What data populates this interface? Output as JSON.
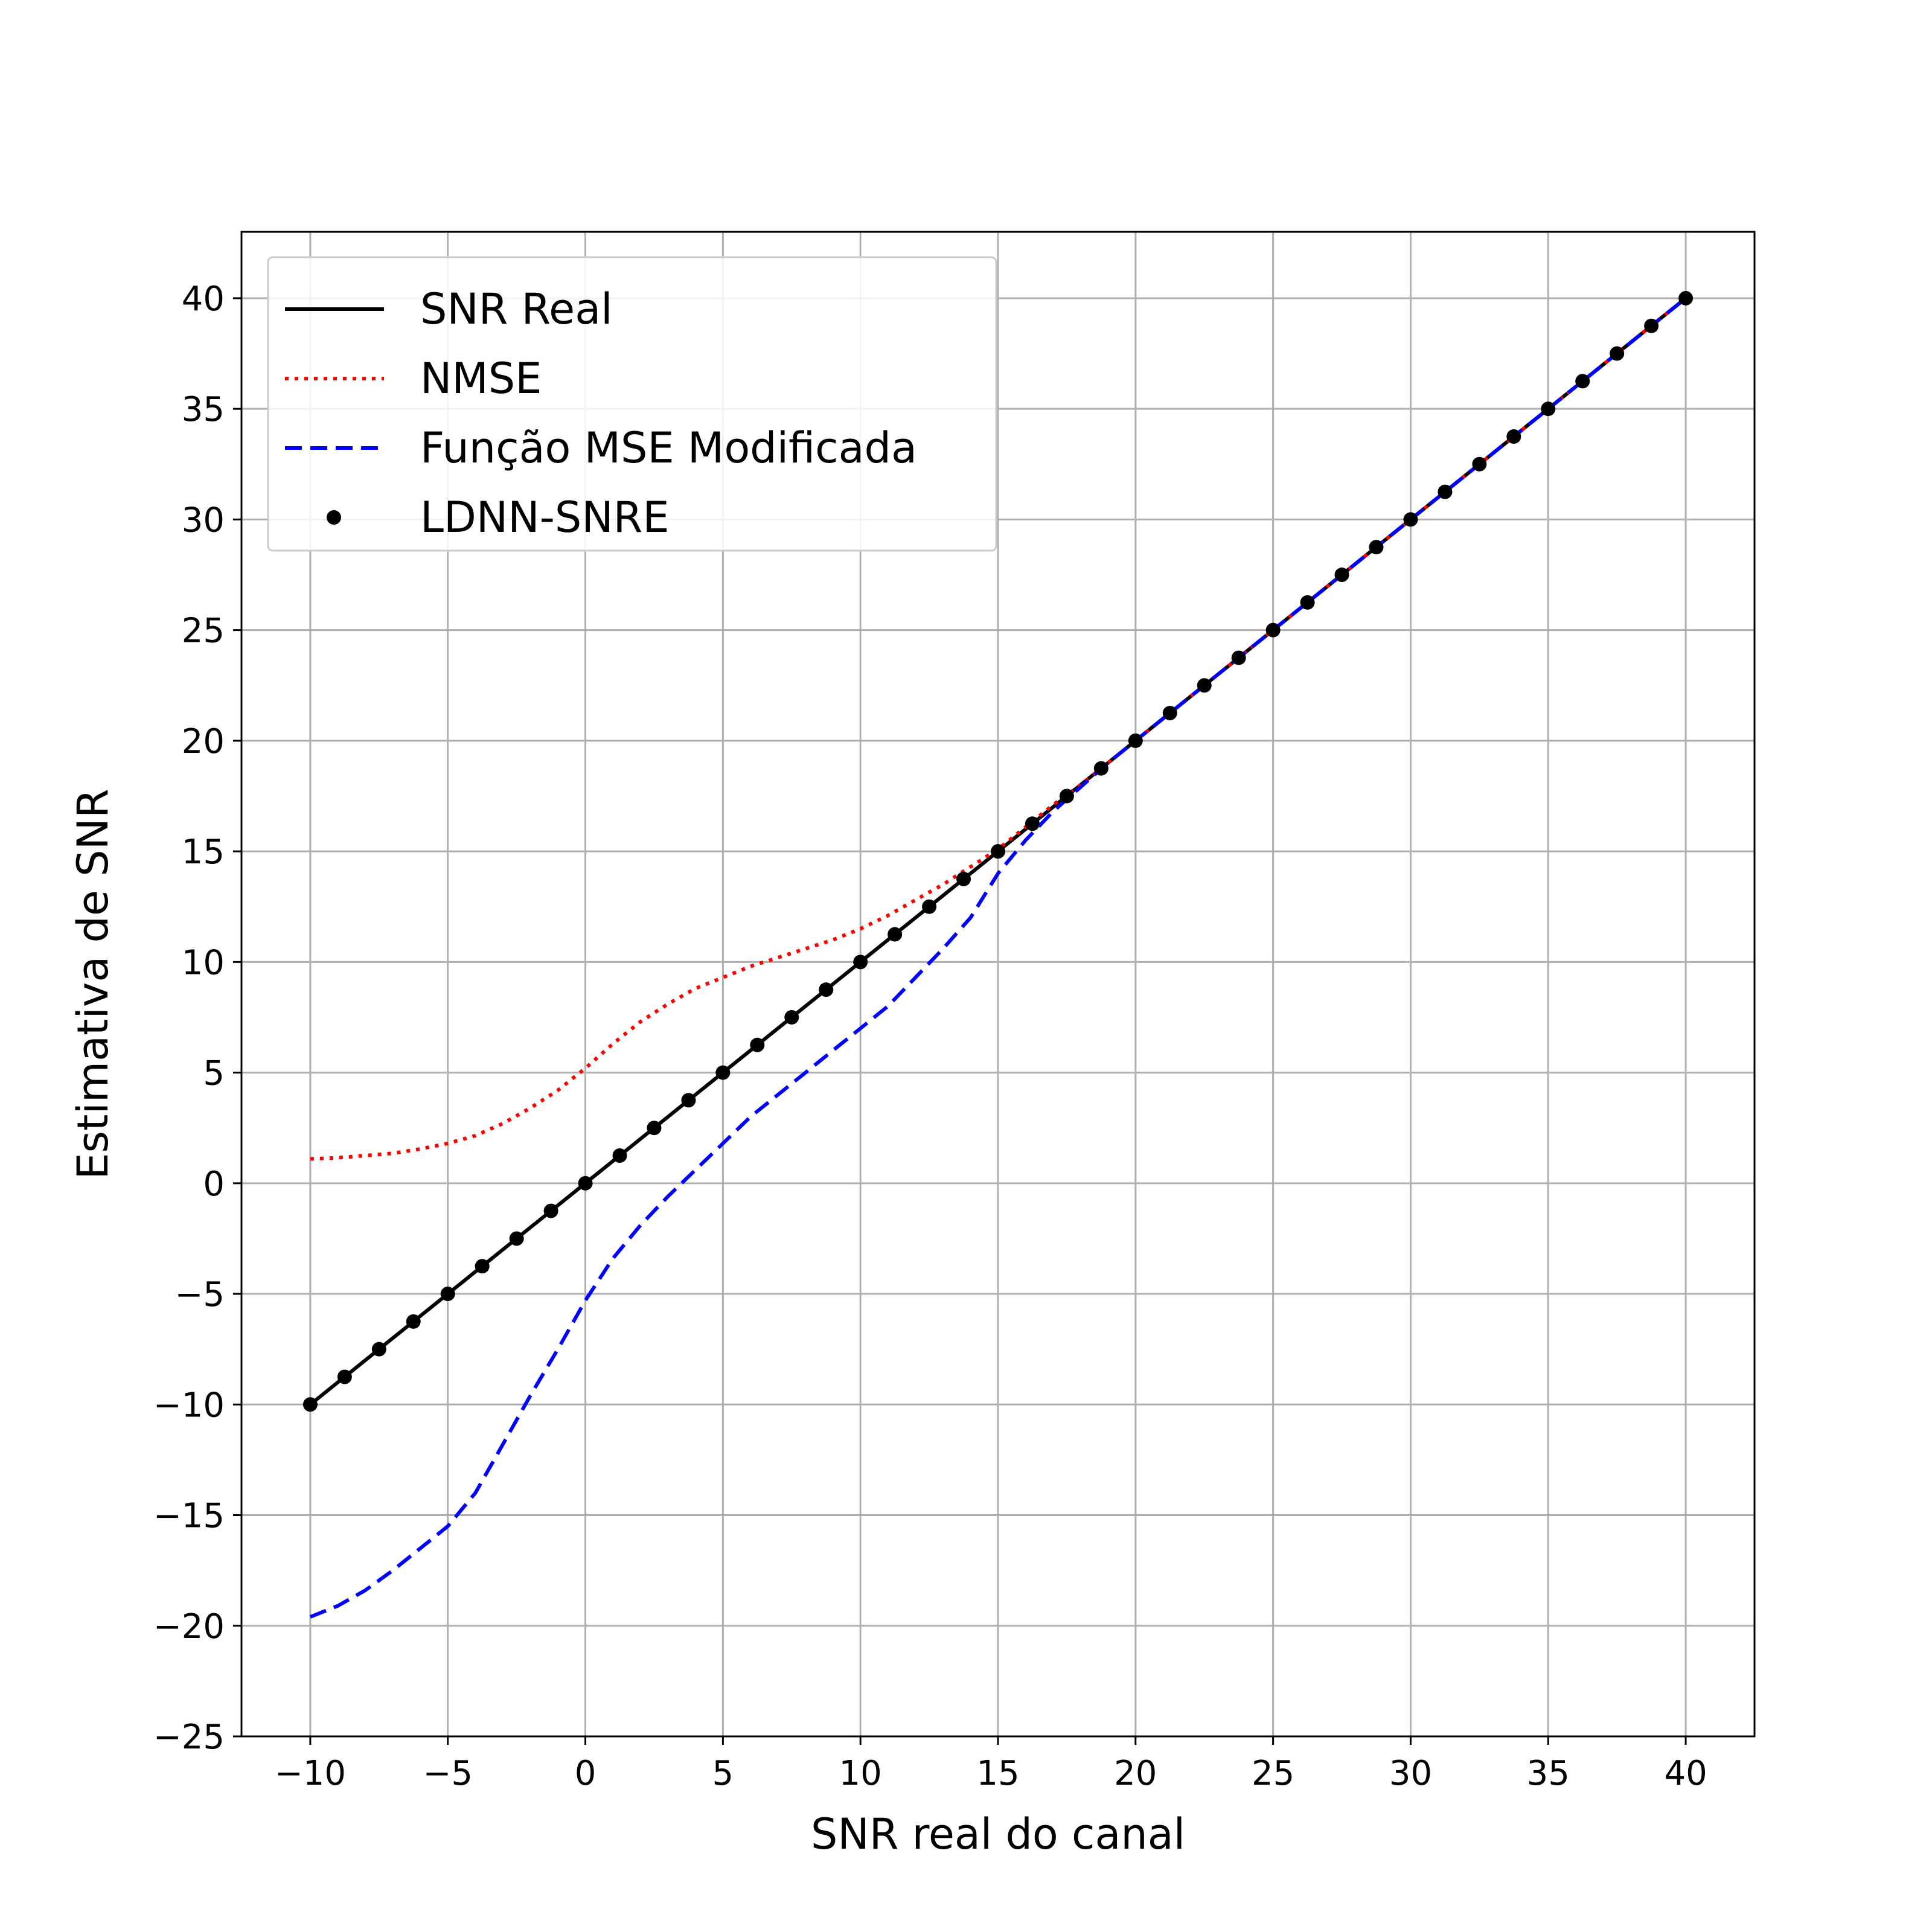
{
  "chart_data": {
    "type": "line",
    "xlabel": "SNR real do canal",
    "ylabel": "Estimativa de SNR",
    "xlim": [
      -12.5,
      42.5
    ],
    "ylim": [
      -25,
      43
    ],
    "xticks": [
      -10,
      -5,
      0,
      5,
      10,
      15,
      20,
      25,
      30,
      35,
      40
    ],
    "xtick_labels": [
      "−10",
      "−5",
      "0",
      "5",
      "10",
      "15",
      "20",
      "25",
      "30",
      "35",
      "40"
    ],
    "yticks": [
      -25,
      -20,
      -15,
      -10,
      -5,
      0,
      5,
      10,
      15,
      20,
      25,
      30,
      35,
      40
    ],
    "ytick_labels": [
      "−25",
      "−20",
      "−15",
      "−10",
      "−5",
      "0",
      "5",
      "10",
      "15",
      "20",
      "25",
      "30",
      "35",
      "40"
    ],
    "grid": true,
    "legend": {
      "position": "top-left"
    },
    "colors": {
      "snr_real": "#000000",
      "nmse": "#ff0000",
      "mse_mod": "#0000ff",
      "ldnn": "#000000",
      "grid": "#b0b0b0"
    },
    "series": [
      {
        "name": "SNR Real",
        "style": "solid",
        "x": [
          -10,
          40
        ],
        "y": [
          -10,
          40
        ]
      },
      {
        "name": "NMSE",
        "style": "dotted",
        "x": [
          -10,
          -9,
          -8,
          -7,
          -6,
          -5,
          -4,
          -3,
          -2,
          -1,
          0,
          1,
          2,
          3,
          4,
          5,
          6,
          7,
          8,
          9,
          10,
          11,
          12,
          13,
          14,
          15,
          16,
          17,
          18,
          19,
          20,
          25,
          30,
          35,
          40
        ],
        "y": [
          1.1,
          1.15,
          1.25,
          1.35,
          1.55,
          1.8,
          2.15,
          2.7,
          3.4,
          4.2,
          5.2,
          6.3,
          7.3,
          8.1,
          8.8,
          9.3,
          9.8,
          10.2,
          10.6,
          11.0,
          11.5,
          12.1,
          12.8,
          13.5,
          14.3,
          15.1,
          16.1,
          17.1,
          18.0,
          19.0,
          20.0,
          25.0,
          30.0,
          35.0,
          40.0
        ]
      },
      {
        "name": "Função MSE Modificada",
        "style": "dashed",
        "x": [
          -10,
          -9,
          -8,
          -7,
          -6,
          -5,
          -4,
          -3,
          -2,
          -1,
          0,
          1,
          2,
          3,
          4,
          5,
          6,
          7,
          8,
          9,
          10,
          11,
          12,
          13,
          14,
          15,
          16,
          17,
          18,
          19,
          20,
          25,
          30,
          35,
          40
        ],
        "y": [
          -19.6,
          -19.1,
          -18.4,
          -17.5,
          -16.5,
          -15.5,
          -14.0,
          -11.8,
          -9.6,
          -7.5,
          -5.3,
          -3.4,
          -1.9,
          -0.6,
          0.6,
          1.8,
          3.0,
          4.0,
          5.0,
          6.0,
          7.0,
          8.0,
          9.3,
          10.6,
          12.0,
          14.0,
          15.5,
          16.8,
          17.9,
          19.0,
          20.0,
          25.0,
          30.0,
          35.0,
          40.0
        ]
      },
      {
        "name": "LDNN-SNRE",
        "style": "markers",
        "x": [
          -10,
          -8.75,
          -7.5,
          -6.25,
          -5,
          -3.75,
          -2.5,
          -1.25,
          0,
          1.25,
          2.5,
          3.75,
          5,
          6.25,
          7.5,
          8.75,
          10,
          11.25,
          12.5,
          13.75,
          15,
          16.25,
          17.5,
          18.75,
          20,
          21.25,
          22.5,
          23.75,
          25,
          26.25,
          27.5,
          28.75,
          30,
          31.25,
          32.5,
          33.75,
          35,
          36.25,
          37.5,
          38.75,
          40
        ],
        "y": [
          -10,
          -8.75,
          -7.5,
          -6.25,
          -5,
          -3.75,
          -2.5,
          -1.25,
          0,
          1.25,
          2.5,
          3.75,
          5,
          6.25,
          7.5,
          8.75,
          10,
          11.25,
          12.5,
          13.75,
          15,
          16.25,
          17.5,
          18.75,
          20,
          21.25,
          22.5,
          23.75,
          25,
          26.25,
          27.5,
          28.75,
          30,
          31.25,
          32.5,
          33.75,
          35,
          36.25,
          37.5,
          38.75,
          40
        ]
      }
    ]
  }
}
